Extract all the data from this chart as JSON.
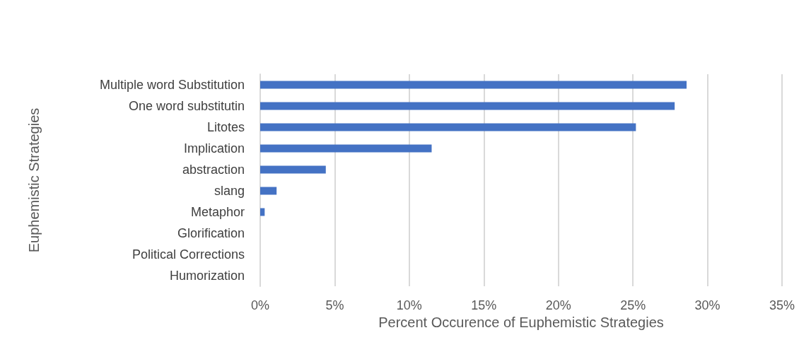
{
  "chart_data": {
    "type": "bar",
    "orientation": "horizontal",
    "categories": [
      "Multiple word Substitution",
      "One word substitutin",
      "Litotes",
      "Implication",
      "abstraction",
      "slang",
      "Metaphor",
      "Glorification",
      "Political Corrections",
      "Humorization"
    ],
    "values": [
      28.6,
      27.8,
      25.2,
      11.5,
      4.4,
      1.1,
      0.3,
      0,
      0,
      0
    ],
    "color": "#4472c4",
    "xlabel": "Percent Occurence of Euphemistic Strategies",
    "ylabel": "Euphemistic Strategies",
    "xlim": [
      0,
      35
    ],
    "xticks": [
      {
        "value": 0,
        "label": "0%"
      },
      {
        "value": 5,
        "label": "5%"
      },
      {
        "value": 10,
        "label": "10%"
      },
      {
        "value": 15,
        "label": "15%"
      },
      {
        "value": 20,
        "label": "20%"
      },
      {
        "value": 25,
        "label": "25%"
      },
      {
        "value": 30,
        "label": "30%"
      },
      {
        "value": 35,
        "label": "35%"
      }
    ],
    "grid": "x"
  }
}
